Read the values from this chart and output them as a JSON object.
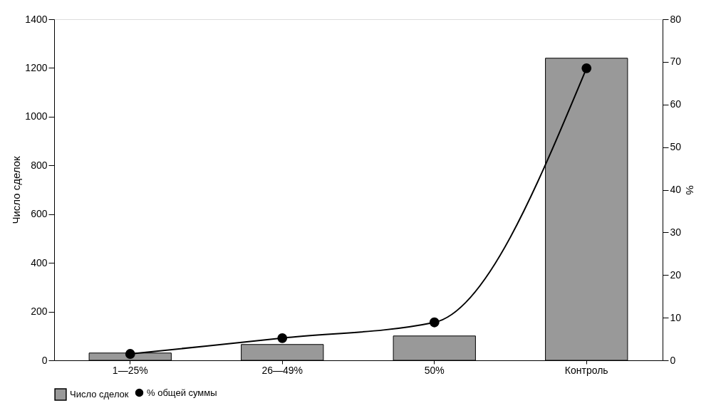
{
  "chart_data": {
    "type": "bar",
    "categories": [
      "1—25%",
      "26—49%",
      "50%",
      "Контроль"
    ],
    "series": [
      {
        "name": "Число сделок",
        "color": "#999999",
        "values": [
          30,
          65,
          100,
          1240
        ]
      },
      {
        "name": "% общей суммы",
        "type": "line",
        "axis": "y2",
        "color": "#000000",
        "marker": "circle",
        "values": [
          1.5,
          5.2,
          8.9,
          68.5
        ]
      }
    ],
    "ylabel": "Число сделок",
    "y2label": "%",
    "ylim": [
      0,
      1400
    ],
    "yticks": [
      0,
      200,
      400,
      600,
      800,
      1000,
      1200,
      1400
    ],
    "y2lim": [
      0,
      80
    ],
    "y2ticks": [
      0,
      10,
      20,
      30,
      40,
      50,
      60,
      70,
      80
    ],
    "grid": false,
    "legend": "bottom"
  }
}
